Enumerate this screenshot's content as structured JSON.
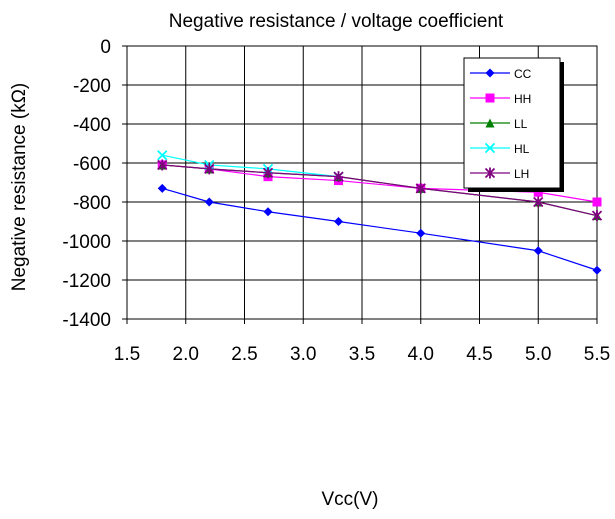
{
  "chart_data": {
    "type": "line",
    "title": "Negative resistance  / voltage coefficient",
    "xlabel": "Vcc(V)",
    "ylabel": "Negative resistance  (kΩ)",
    "xlim": [
      1.5,
      5.5
    ],
    "ylim": [
      -1400,
      0
    ],
    "xticks": [
      "1.5",
      "2.0",
      "2.5",
      "3.0",
      "3.5",
      "4.0",
      "4.5",
      "5.0",
      "5.5"
    ],
    "yticks": [
      "0",
      "-200",
      "-400",
      "-600",
      "-800",
      "-1000",
      "-1200",
      "-1400"
    ],
    "grid": true,
    "legend_position": "top-right",
    "series": [
      {
        "name": "CC",
        "color": "#0000ff",
        "marker": "diamond",
        "x": [
          1.8,
          2.2,
          2.7,
          3.3,
          4.0,
          5.0,
          5.5
        ],
        "y": [
          -730,
          -800,
          -850,
          -900,
          -960,
          -1050,
          -1150
        ]
      },
      {
        "name": "HH",
        "color": "#ff00ff",
        "marker": "square",
        "x": [
          1.8,
          2.2,
          2.7,
          3.3,
          4.0,
          5.0,
          5.5
        ],
        "y": [
          -610,
          -630,
          -670,
          -690,
          -730,
          -750,
          -800
        ]
      },
      {
        "name": "LL",
        "color": "#008000",
        "marker": "triangle",
        "x": [
          1.8,
          2.2,
          2.7,
          3.3,
          4.0,
          5.0,
          5.5
        ],
        "y": [
          -610,
          -630,
          -650,
          -670,
          -730,
          -800,
          -870
        ]
      },
      {
        "name": "HL",
        "color": "#00ffff",
        "marker": "x",
        "x": [
          1.8,
          2.2,
          2.7,
          3.3
        ],
        "y": [
          -560,
          -610,
          -630,
          -670
        ]
      },
      {
        "name": "LH",
        "color": "#800080",
        "marker": "star",
        "x": [
          1.8,
          2.2,
          2.7,
          3.3,
          4.0,
          5.0,
          5.5
        ],
        "y": [
          -610,
          -630,
          -650,
          -670,
          -730,
          -800,
          -870
        ]
      }
    ]
  }
}
